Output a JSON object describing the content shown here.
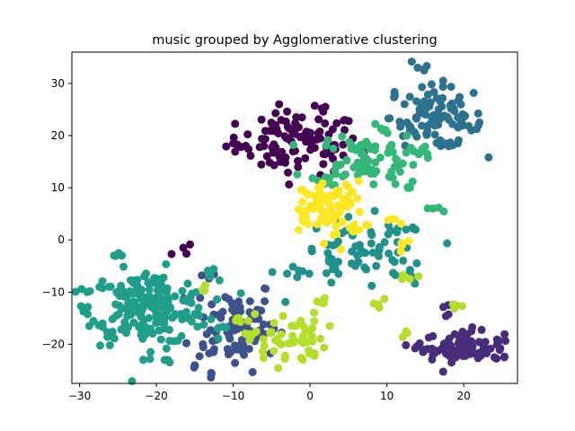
{
  "chart_data": {
    "type": "scatter",
    "title": "music grouped by Agglomerative clustering",
    "xlabel": "",
    "ylabel": "",
    "xlim": [
      -31,
      27
    ],
    "ylim": [
      -27.5,
      36
    ],
    "xticks": [
      -30,
      -20,
      -10,
      0,
      10,
      20
    ],
    "yticks": [
      -20,
      -10,
      0,
      10,
      20,
      30
    ],
    "grid": false,
    "legend": "none",
    "clusters": [
      {
        "color": "#440154",
        "center": [
          -1.5,
          18.5
        ],
        "spread": [
          4.0,
          3.0
        ],
        "count": 95,
        "anchors": [
          [
            2,
            25.5
          ],
          [
            -4,
            16
          ],
          [
            -10,
            18.5
          ],
          [
            -16.5,
            -1.5
          ],
          [
            -4.5,
            22
          ]
        ]
      },
      {
        "color": "#3b528b",
        "center": [
          -10,
          -16
        ],
        "spread": [
          2.8,
          4.5
        ],
        "count": 80,
        "anchors": [
          [
            -13,
            -7
          ],
          [
            -9.5,
            -21
          ],
          [
            -15,
            -24
          ],
          [
            -6,
            -18
          ],
          [
            -12,
            -19
          ]
        ]
      },
      {
        "color": "#472d7b",
        "center": [
          20,
          -20.5
        ],
        "spread": [
          2.6,
          1.4
        ],
        "count": 75,
        "anchors": [
          [
            14,
            -20.5
          ],
          [
            18,
            -12.5
          ],
          [
            24,
            -22.5
          ],
          [
            21,
            -17.5
          ],
          [
            16,
            -22
          ]
        ]
      },
      {
        "color": "#2c728e",
        "center": [
          16.5,
          23.5
        ],
        "spread": [
          3.0,
          3.0
        ],
        "count": 90,
        "anchors": [
          [
            14,
            33
          ],
          [
            11,
            28
          ],
          [
            21,
            21
          ],
          [
            17,
            18
          ],
          [
            13,
            21
          ]
        ]
      },
      {
        "color": "#21918c",
        "center": [
          7,
          -3
        ],
        "spread": [
          4.5,
          3.5
        ],
        "count": 60,
        "anchors": [
          [
            3,
            -5
          ],
          [
            12.5,
            2
          ],
          [
            13,
            -6
          ],
          [
            -1,
            -6
          ],
          [
            9,
            -2
          ]
        ]
      },
      {
        "color": "#1f9e89",
        "center": [
          -21,
          -13
        ],
        "spread": [
          3.8,
          3.5
        ],
        "count": 200,
        "anchors": [
          [
            -29,
            -10
          ],
          [
            -25.5,
            -3
          ],
          [
            -18.5,
            -23
          ],
          [
            -12,
            -17
          ],
          [
            -13,
            -7
          ],
          [
            -27,
            -16
          ]
        ]
      },
      {
        "color": "#35b779",
        "center": [
          7,
          15.5
        ],
        "spread": [
          3.5,
          2.5
        ],
        "count": 80,
        "anchors": [
          [
            16,
            6
          ],
          [
            9.5,
            21
          ],
          [
            13,
            10
          ],
          [
            2,
            12
          ],
          [
            13.5,
            17
          ]
        ]
      },
      {
        "color": "#b5de2b",
        "center": [
          -3,
          -19
        ],
        "spread": [
          2.5,
          2.5
        ],
        "count": 55,
        "anchors": [
          [
            -14,
            -9.5
          ],
          [
            -9.5,
            -15
          ],
          [
            1.5,
            -12
          ],
          [
            9,
            -13
          ],
          [
            13,
            -7.5
          ],
          [
            19,
            -12.5
          ],
          [
            12.5,
            -17.5
          ]
        ]
      },
      {
        "color": "#fde725",
        "center": [
          3,
          5.5
        ],
        "spread": [
          2.0,
          2.8
        ],
        "count": 70,
        "anchors": [
          [
            -1,
            4
          ],
          [
            11,
            4
          ],
          [
            12,
            -1
          ],
          [
            5,
            8.5
          ],
          [
            -0.5,
            9
          ]
        ]
      }
    ]
  }
}
